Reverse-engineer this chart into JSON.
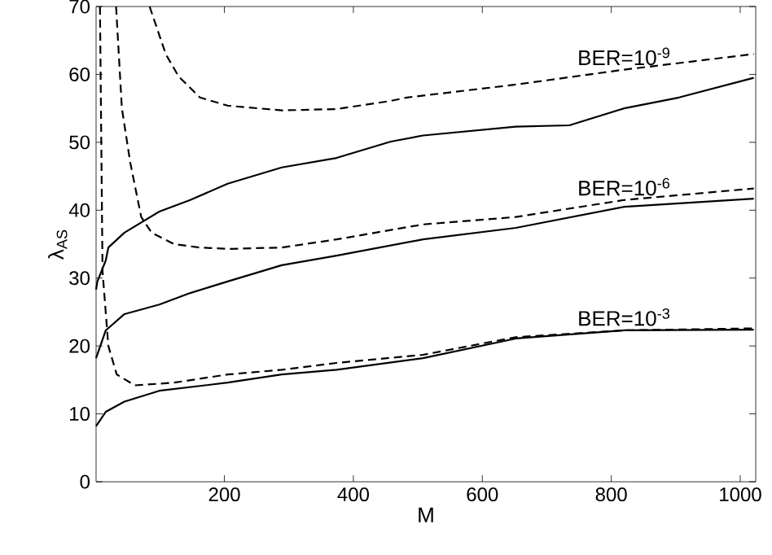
{
  "chart_data": {
    "type": "line",
    "xlabel": "M",
    "ylabel": "λ$_{AS}$",
    "xlim": [
      1,
      1024
    ],
    "ylim": [
      0,
      70
    ],
    "xticks": [
      200,
      400,
      600,
      800,
      1000
    ],
    "yticks": [
      0,
      10,
      20,
      30,
      40,
      50,
      60,
      70
    ],
    "grid": false,
    "marker": "none",
    "series": [
      {
        "color": "#000000",
        "line_style": "solid",
        "x": [
          1,
          3,
          16,
          20,
          45,
          99,
          147,
          205,
          289,
          374,
          458,
          508,
          652,
          735,
          820,
          905,
          1021
        ],
        "values": [
          28.3,
          29.5,
          32.6,
          34.5,
          36.7,
          39.8,
          41.5,
          43.9,
          46.3,
          47.7,
          50.1,
          51,
          52.3,
          52.5,
          55,
          56.6,
          59.5
        ]
      },
      {
        "color": "#000000",
        "line_style": "dashed",
        "x": [
          84,
          109,
          129,
          162,
          205,
          289,
          374,
          458,
          483,
          652,
          820,
          1021
        ],
        "values": [
          70,
          63,
          59.7,
          56.6,
          55.4,
          54.7,
          54.9,
          56.1,
          56.6,
          58.5,
          60.7,
          63
        ]
      },
      {
        "color": "#000000",
        "line_style": "solid",
        "x": [
          1,
          16,
          45,
          99,
          147,
          205,
          289,
          374,
          508,
          652,
          820,
          1021
        ],
        "values": [
          18.2,
          22.3,
          24.7,
          26.1,
          27.8,
          29.5,
          31.9,
          33.3,
          35.7,
          37.4,
          40.5,
          41.7
        ]
      },
      {
        "color": "#000000",
        "line_style": "dashed",
        "x": [
          32,
          41,
          54,
          71,
          87,
          122,
          162,
          205,
          289,
          374,
          508,
          652,
          820,
          1021
        ],
        "values": [
          70,
          55,
          47,
          39,
          36.7,
          35,
          34.5,
          34.3,
          34.5,
          35.7,
          37.9,
          39,
          41.5,
          43.2
        ]
      },
      {
        "color": "#000000",
        "line_style": "solid",
        "x": [
          1,
          16,
          45,
          99,
          205,
          289,
          374,
          508,
          652,
          820,
          1021
        ],
        "values": [
          8.2,
          10.3,
          11.8,
          13.4,
          14.6,
          15.8,
          16.5,
          18.2,
          21.1,
          22.3,
          22.4
        ]
      },
      {
        "color": "#000000",
        "line_style": "dashed",
        "x": [
          7,
          11,
          20,
          33,
          61,
          122,
          205,
          289,
          374,
          508,
          652,
          820,
          1021
        ],
        "values": [
          70,
          31,
          20,
          15.8,
          14.2,
          14.6,
          15.8,
          16.5,
          17.5,
          18.7,
          21.3,
          22.3,
          22.6
        ]
      }
    ],
    "annotations": [
      "BER=10$^{-9}$",
      "BER=10$^{-6}$",
      "BER=10$^{-3}$"
    ]
  }
}
